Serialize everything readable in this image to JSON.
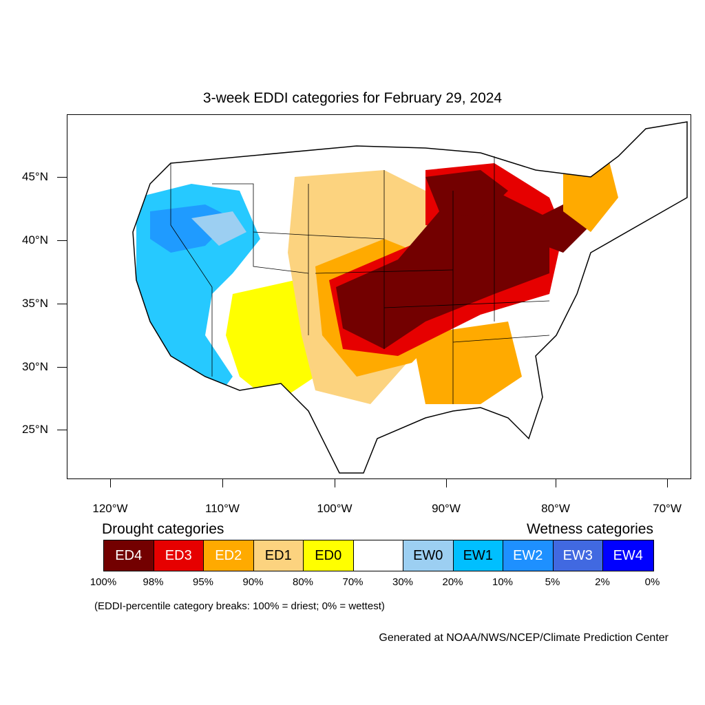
{
  "title": "3-week EDDI categories for February 29, 2024",
  "y_axis_labels": [
    "45°N",
    "40°N",
    "35°N",
    "30°N",
    "25°N"
  ],
  "x_axis_labels": [
    "120°W",
    "110°W",
    "100°W",
    "90°W",
    "80°W",
    "70°W"
  ],
  "legend": {
    "drought_title": "Drought categories",
    "wetness_title": "Wetness categories",
    "categories": [
      {
        "label": "ED4",
        "color": "#730000",
        "text_color": "#ffffff"
      },
      {
        "label": "ED3",
        "color": "#e60000",
        "text_color": "#ffffff"
      },
      {
        "label": "ED2",
        "color": "#ffaa00",
        "text_color": "#ffffff"
      },
      {
        "label": "ED1",
        "color": "#fcd37f",
        "text_color": "#000000"
      },
      {
        "label": "ED0",
        "color": "#ffff00",
        "text_color": "#000000"
      },
      {
        "label": "",
        "color": "#ffffff",
        "text_color": "#000000"
      },
      {
        "label": "EW0",
        "color": "#9ccff2",
        "text_color": "#000000"
      },
      {
        "label": "EW1",
        "color": "#00bfff",
        "text_color": "#000000"
      },
      {
        "label": "EW2",
        "color": "#1e90ff",
        "text_color": "#ffffff"
      },
      {
        "label": "EW3",
        "color": "#4169e1",
        "text_color": "#ffffff"
      },
      {
        "label": "EW4",
        "color": "#0000ff",
        "text_color": "#ffffff"
      }
    ],
    "breaks": [
      "100%",
      "98%",
      "95%",
      "90%",
      "80%",
      "70%",
      "30%",
      "20%",
      "10%",
      "5%",
      "2%",
      "0%"
    ],
    "note": "(EDDI-percentile category breaks: 100% = driest; 0% = wettest)"
  },
  "credit": "Generated at NOAA/NWS/NCEP/Climate Prediction Center"
}
